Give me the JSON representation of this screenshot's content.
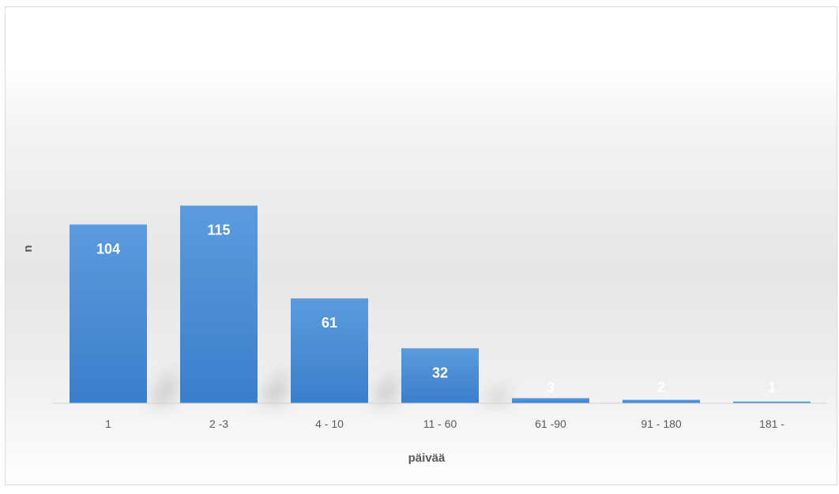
{
  "chart_data": {
    "type": "bar",
    "title": "",
    "xlabel": "päivää",
    "ylabel": "n",
    "categories": [
      "1",
      "2 -3",
      "4 - 10",
      "11 - 60",
      "61 -90",
      "91 - 180",
      "181 -"
    ],
    "values": [
      104,
      115,
      61,
      32,
      3,
      2,
      1
    ],
    "ylim": [
      0,
      180
    ],
    "grid": false,
    "legend": "none",
    "bar_color": "#4a8fd6",
    "label_color": "#ffffff"
  }
}
